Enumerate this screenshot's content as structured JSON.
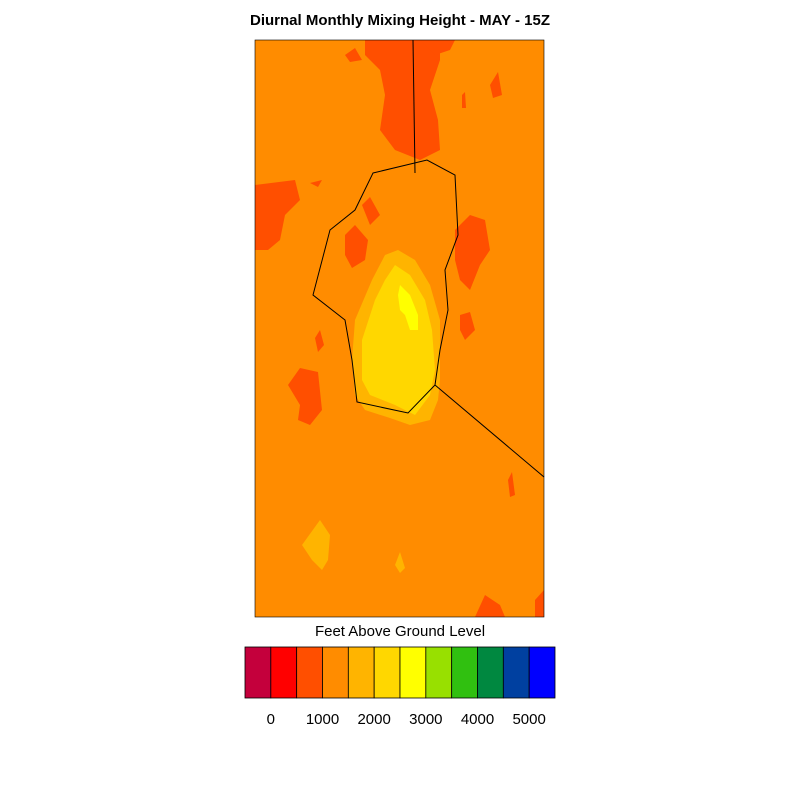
{
  "title": "Diurnal Monthly Mixing Height - MAY - 15Z",
  "colorbar": {
    "label": "Feet Above Ground Level",
    "range": [
      -500,
      5500
    ],
    "colors": [
      "#c4003c",
      "#ff0000",
      "#ff4f00",
      "#ff8c00",
      "#ffb400",
      "#ffd700",
      "#ffff00",
      "#98e000",
      "#30c010",
      "#008840",
      "#0040a0",
      "#0000ff"
    ],
    "ticks": [
      0,
      1000,
      2000,
      3000,
      4000,
      5000
    ]
  }
}
